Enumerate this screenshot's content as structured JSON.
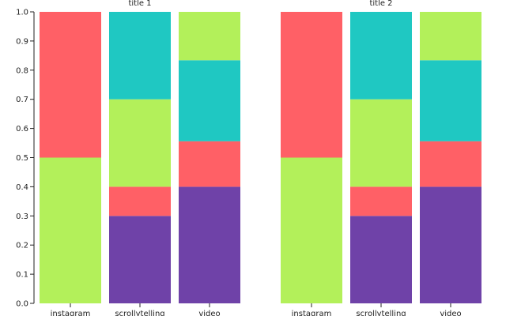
{
  "chart_data": {
    "type": "bar",
    "stacked": true,
    "categories": [
      "instagram",
      "scrollytelling",
      "video"
    ],
    "yticks": [
      "0.0",
      "0.1",
      "0.2",
      "0.3",
      "0.4",
      "0.5",
      "0.6",
      "0.7",
      "0.8",
      "0.9",
      "1.0"
    ],
    "ylim": [
      0,
      1
    ],
    "colors": {
      "purple": "#6f42a8",
      "red": "#ff6066",
      "green": "#b3f05a",
      "teal": "#1fc8c2"
    },
    "panels": [
      {
        "title": "title 1",
        "stacks": [
          [
            {
              "color": "green",
              "value": 0.5
            },
            {
              "color": "red",
              "value": 0.5
            }
          ],
          [
            {
              "color": "purple",
              "value": 0.3
            },
            {
              "color": "red",
              "value": 0.1
            },
            {
              "color": "green",
              "value": 0.3
            },
            {
              "color": "teal",
              "value": 0.3
            }
          ],
          [
            {
              "color": "purple",
              "value": 0.4
            },
            {
              "color": "red",
              "value": 0.156
            },
            {
              "color": "teal",
              "value": 0.278
            },
            {
              "color": "green",
              "value": 0.166
            }
          ]
        ]
      },
      {
        "title": "title 2",
        "stacks": [
          [
            {
              "color": "green",
              "value": 0.5
            },
            {
              "color": "red",
              "value": 0.5
            }
          ],
          [
            {
              "color": "purple",
              "value": 0.3
            },
            {
              "color": "red",
              "value": 0.1
            },
            {
              "color": "green",
              "value": 0.3
            },
            {
              "color": "teal",
              "value": 0.3
            }
          ],
          [
            {
              "color": "purple",
              "value": 0.4
            },
            {
              "color": "red",
              "value": 0.156
            },
            {
              "color": "teal",
              "value": 0.278
            },
            {
              "color": "green",
              "value": 0.166
            }
          ]
        ]
      }
    ]
  }
}
